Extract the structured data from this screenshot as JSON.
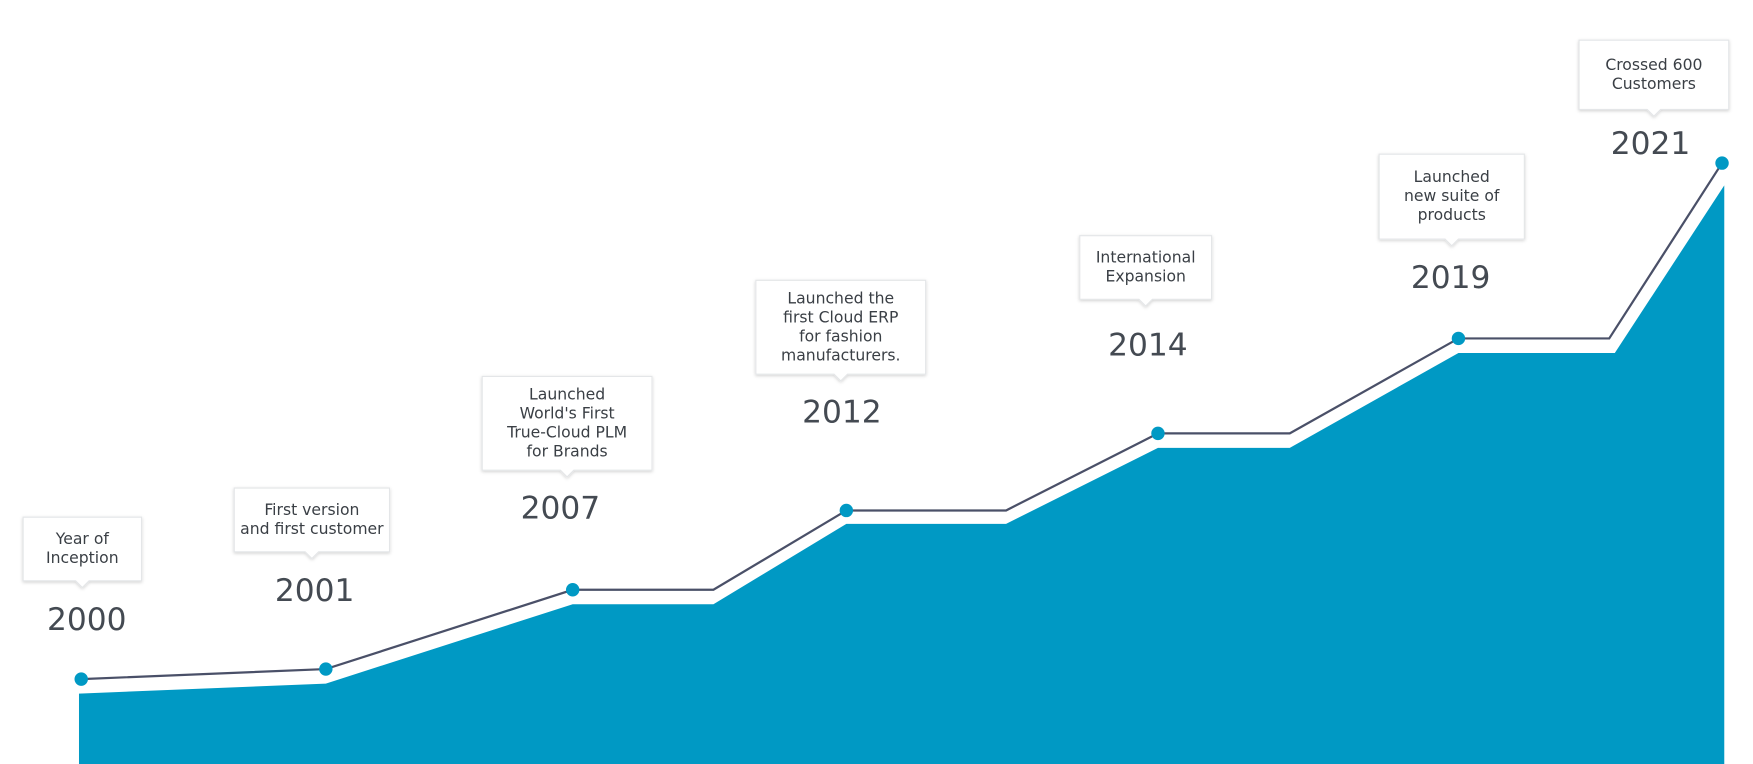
{
  "milestones": [
    {
      "year": "2000",
      "lines": [
        "Year of",
        "Inception"
      ]
    },
    {
      "year": "2001",
      "lines": [
        "First version",
        "and first customer"
      ]
    },
    {
      "year": "2007",
      "lines": [
        "Launched",
        "World's First",
        "True-Cloud PLM",
        "for Brands"
      ]
    },
    {
      "year": "2012",
      "lines": [
        "Launched the",
        "first Cloud ERP",
        "for fashion",
        "manufacturers."
      ]
    },
    {
      "year": "2014",
      "lines": [
        "International",
        "Expansion"
      ]
    },
    {
      "year": "2019",
      "lines": [
        "Launched",
        "new suite of",
        "products"
      ]
    },
    {
      "year": "2021",
      "lines": [
        "Crossed 600",
        "Customers"
      ]
    }
  ]
}
